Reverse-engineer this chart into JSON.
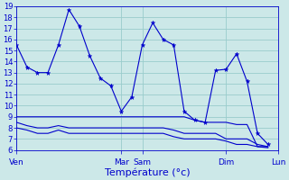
{
  "title": "",
  "xlabel": "Température (°c)",
  "bg_color": "#cce8e8",
  "grid_color": "#99cccc",
  "line_color": "#0000cc",
  "ylim": [
    6,
    19
  ],
  "yticks": [
    6,
    7,
    8,
    9,
    10,
    11,
    12,
    13,
    14,
    15,
    16,
    17,
    18,
    19
  ],
  "x_tick_labels": [
    "Ven",
    "",
    "",
    "",
    "",
    "",
    "",
    "",
    "",
    "",
    "Mar",
    "",
    "Sam",
    "",
    "",
    "",
    "",
    "",
    "",
    "",
    "Dim",
    "",
    "",
    "",
    "",
    "Lun"
  ],
  "x_tick_positions": [
    0,
    1,
    2,
    3,
    4,
    5,
    6,
    7,
    8,
    9,
    10,
    11,
    12,
    13,
    14,
    15,
    16,
    17,
    18,
    19,
    20,
    21,
    22,
    23,
    24,
    25
  ],
  "x_named_positions": [
    0,
    10,
    12,
    20,
    25
  ],
  "x_named_labels": [
    "Ven",
    "Mar",
    "Sam",
    "Dim",
    "Lun"
  ],
  "series_main": [
    15.5,
    13.5,
    13.0,
    13.0,
    15.5,
    18.7,
    17.2,
    14.5,
    12.5,
    11.8,
    9.5,
    10.8,
    15.5,
    17.5,
    16.0,
    15.5,
    9.5,
    8.7,
    8.5,
    13.2,
    13.3,
    14.7,
    12.2,
    7.5,
    6.5
  ],
  "series_flat": [
    [
      9.0,
      9.0,
      9.0,
      9.0,
      9.0,
      9.0,
      9.0,
      9.0,
      9.0,
      9.0,
      9.0,
      9.0,
      9.0,
      9.0,
      9.0,
      9.0,
      9.0,
      8.7,
      8.5,
      8.5,
      8.5,
      8.3,
      8.3,
      6.3,
      6.3
    ],
    [
      8.5,
      8.2,
      8.0,
      8.0,
      8.2,
      8.0,
      8.0,
      8.0,
      8.0,
      8.0,
      8.0,
      8.0,
      8.0,
      8.0,
      8.0,
      7.8,
      7.5,
      7.5,
      7.5,
      7.5,
      7.0,
      7.0,
      7.0,
      6.5,
      6.3
    ],
    [
      8.0,
      7.8,
      7.5,
      7.5,
      7.8,
      7.5,
      7.5,
      7.5,
      7.5,
      7.5,
      7.5,
      7.5,
      7.5,
      7.5,
      7.5,
      7.2,
      7.0,
      7.0,
      7.0,
      7.0,
      6.8,
      6.5,
      6.5,
      6.3,
      6.2
    ]
  ],
  "n_points": 25,
  "figsize": [
    3.2,
    2.0
  ],
  "dpi": 100,
  "ytick_fontsize": 6,
  "xtick_fontsize": 6.5,
  "xlabel_fontsize": 8
}
